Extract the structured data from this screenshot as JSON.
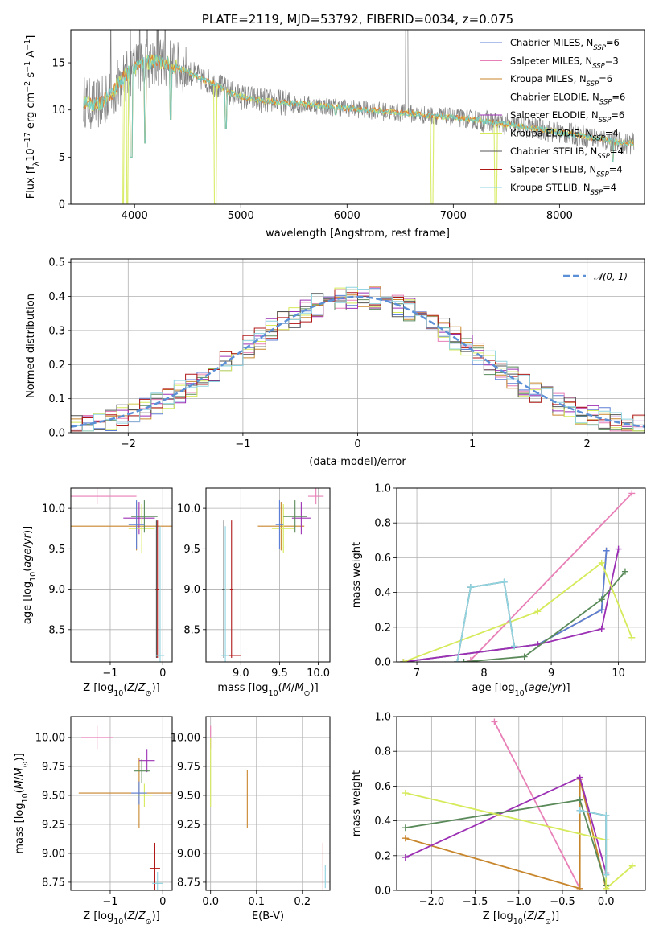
{
  "colors": {
    "chabrier_miles": "#5b7fd6",
    "salpeter_miles": "#e87fb6",
    "kroupa_miles": "#c8862c",
    "chabrier_elodie": "#5a8a5a",
    "salpeter_elodie": "#9c30b4",
    "kroupa_elodie": "#d6ea5a",
    "chabrier_stelib": "#555555",
    "salpeter_stelib": "#b01818",
    "kroupa_stelib": "#8fd4e0",
    "spectrum_data": "#808080",
    "fit_orange": "#e07830",
    "fit_cyan": "#70d0c8",
    "gaussian": "#5b8fd6",
    "grid": "#b0b0b0"
  },
  "chart_data": [
    {
      "id": "spectrum",
      "type": "line",
      "title": "PLATE=2119, MJD=53792, FIBERID=0034, z=0.075",
      "xlabel": "wavelength [Angstrom, rest frame]",
      "ylabel": "Flux [f_λ 10^-17 erg cm^-2 s^-1 A^-1]",
      "xlim": [
        3400,
        8800
      ],
      "ylim": [
        0,
        18.5
      ],
      "xticks": [
        4000,
        5000,
        6000,
        7000,
        8000
      ],
      "yticks": [
        0,
        5,
        10,
        15
      ],
      "grid": false,
      "legend_position": "top-right",
      "legend": [
        {
          "pre": "Chabrier MILES, N",
          "sub": "SSP",
          "post": "=6",
          "color_key": "chabrier_miles"
        },
        {
          "pre": "Salpeter MILES, N",
          "sub": "SSP",
          "post": "=3",
          "color_key": "salpeter_miles"
        },
        {
          "pre": "Kroupa MILES, N",
          "sub": "SSP",
          "post": "=6",
          "color_key": "kroupa_miles"
        },
        {
          "pre": "Chabrier ELODIE, N",
          "sub": "SSP",
          "post": "=6",
          "color_key": "chabrier_elodie"
        },
        {
          "pre": "Salpeter ELODIE, N",
          "sub": "SSP",
          "post": "=6",
          "color_key": "salpeter_elodie"
        },
        {
          "pre": "Kroupa ELODIE, N",
          "sub": "SSP",
          "post": "=4",
          "color_key": "kroupa_elodie"
        },
        {
          "pre": "Chabrier STELIB, N",
          "sub": "SSP",
          "post": "=4",
          "color_key": "chabrier_stelib"
        },
        {
          "pre": "Salpeter STELIB, N",
          "sub": "SSP",
          "post": "=4",
          "color_key": "salpeter_stelib"
        },
        {
          "pre": "Kroupa STELIB, N",
          "sub": "SSP",
          "post": "=4",
          "color_key": "kroupa_stelib"
        }
      ],
      "continuum": [
        [
          3520,
          11
        ],
        [
          3600,
          10.5
        ],
        [
          3700,
          10.8
        ],
        [
          3800,
          12
        ],
        [
          3900,
          13.5
        ],
        [
          4000,
          14.5
        ],
        [
          4100,
          15
        ],
        [
          4200,
          15.2
        ],
        [
          4300,
          15
        ],
        [
          4400,
          14.5
        ],
        [
          4500,
          14
        ],
        [
          4600,
          13.5
        ],
        [
          4700,
          13
        ],
        [
          4800,
          12.5
        ],
        [
          4900,
          11.8
        ],
        [
          5000,
          11.4
        ],
        [
          5200,
          11
        ],
        [
          5400,
          10.8
        ],
        [
          5600,
          10.6
        ],
        [
          5800,
          10.4
        ],
        [
          6000,
          10.2
        ],
        [
          6200,
          10
        ],
        [
          6400,
          9.8
        ],
        [
          6600,
          9.6
        ],
        [
          6800,
          9.4
        ],
        [
          7000,
          9.2
        ],
        [
          7200,
          9
        ],
        [
          7400,
          8.6
        ],
        [
          7600,
          8.3
        ],
        [
          7800,
          8
        ],
        [
          8000,
          7.6
        ],
        [
          8200,
          7.3
        ],
        [
          8400,
          6.9
        ],
        [
          8600,
          6.5
        ],
        [
          8700,
          6.4
        ]
      ],
      "dips": [
        [
          3934,
          0.1
        ],
        [
          3969,
          5
        ],
        [
          4102,
          6.5
        ],
        [
          4340,
          9
        ],
        [
          4861,
          8
        ],
        [
          5890,
          9.5
        ],
        [
          6563,
          10
        ],
        [
          6800,
          0.1
        ],
        [
          7400,
          0.1
        ],
        [
          8500,
          4.5
        ],
        [
          4760,
          0.1
        ],
        [
          3890,
          0.1
        ]
      ]
    },
    {
      "id": "residuals",
      "type": "line",
      "xlabel": "(data-model)/error",
      "ylabel": "Normed distribution",
      "xlim": [
        -2.5,
        2.5
      ],
      "ylim": [
        0,
        0.51
      ],
      "xticks": [
        -2,
        -1,
        0,
        1,
        2
      ],
      "yticks": [
        0.0,
        0.1,
        0.2,
        0.3,
        0.4,
        0.5
      ],
      "grid": true,
      "legend_position": "top-right",
      "legend": [
        {
          "label": "𝒩(0, 1)",
          "color_key": "gaussian",
          "dashed": true
        }
      ],
      "gaussian": {
        "mu": 0,
        "sigma": 1
      }
    },
    {
      "id": "age_vs_Z",
      "type": "scatter",
      "xlabel": "Z [log10(Z/Z⊙)]",
      "ylabel": "age  [log10(age/yr)]",
      "xlim": [
        -1.75,
        0.18
      ],
      "ylim": [
        8.1,
        10.25
      ],
      "xticks": [
        -1,
        0
      ],
      "yticks": [
        8.5,
        9.0,
        9.5,
        10.0
      ],
      "grid": true,
      "points": [
        {
          "x": -1.25,
          "y": 10.15,
          "xe": 0.75,
          "ye": 0.1,
          "color_key": "salpeter_miles"
        },
        {
          "x": -0.5,
          "y": 9.78,
          "xe": 1.65,
          "ye": 0.3,
          "color_key": "kroupa_miles"
        },
        {
          "x": -0.45,
          "y": 9.88,
          "xe": 0.3,
          "ye": 0.2,
          "color_key": "salpeter_elodie"
        },
        {
          "x": -0.4,
          "y": 9.75,
          "xe": 0.25,
          "ye": 0.3,
          "color_key": "kroupa_elodie"
        },
        {
          "x": -0.35,
          "y": 9.9,
          "xe": 0.25,
          "ye": 0.2,
          "color_key": "chabrier_elodie"
        },
        {
          "x": -0.5,
          "y": 9.8,
          "xe": 0.15,
          "ye": 0.3,
          "color_key": "chabrier_miles"
        },
        {
          "x": -0.12,
          "y": 9.0,
          "xe": 0.02,
          "ye": 0.85,
          "color_key": "chabrier_stelib"
        },
        {
          "x": -0.1,
          "y": 9.0,
          "xe": 0.02,
          "ye": 0.85,
          "color_key": "salpeter_stelib"
        },
        {
          "x": -0.05,
          "y": 8.18,
          "xe": 0.08,
          "ye": 1.6,
          "color_key": "kroupa_stelib"
        }
      ]
    },
    {
      "id": "age_vs_mass",
      "type": "scatter",
      "xlabel": "mass [log10(M/M⊙)]",
      "ylabel": "",
      "xlim": [
        8.55,
        10.15
      ],
      "ylim": [
        8.1,
        10.25
      ],
      "xticks": [
        9.0,
        9.5,
        10.0
      ],
      "yticks": [
        8.5,
        9.0,
        9.5,
        10.0
      ],
      "grid": true,
      "points": [
        {
          "x": 9.97,
          "y": 10.15,
          "xe": 0.1,
          "ye": 0.1,
          "color_key": "salpeter_miles"
        },
        {
          "x": 9.52,
          "y": 9.78,
          "xe": 0.3,
          "ye": 0.3,
          "color_key": "kroupa_miles"
        },
        {
          "x": 9.78,
          "y": 9.88,
          "xe": 0.12,
          "ye": 0.2,
          "color_key": "salpeter_elodie"
        },
        {
          "x": 9.55,
          "y": 9.75,
          "xe": 0.15,
          "ye": 0.3,
          "color_key": "kroupa_elodie"
        },
        {
          "x": 9.7,
          "y": 9.9,
          "xe": 0.15,
          "ye": 0.2,
          "color_key": "chabrier_elodie"
        },
        {
          "x": 9.5,
          "y": 9.8,
          "xe": 0.05,
          "ye": 0.3,
          "color_key": "chabrier_miles"
        },
        {
          "x": 8.78,
          "y": 9.0,
          "xe": 0.02,
          "ye": 0.85,
          "color_key": "chabrier_stelib"
        },
        {
          "x": 8.88,
          "y": 9.0,
          "xe": 0.02,
          "ye": 0.85,
          "color_key": "salpeter_stelib"
        },
        {
          "x": 8.88,
          "y": 8.18,
          "xe": 0.12,
          "ye": 0.0,
          "color_key": "salpeter_stelib"
        },
        {
          "x": 8.8,
          "y": 8.18,
          "xe": 0.05,
          "ye": 1.6,
          "color_key": "kroupa_stelib"
        }
      ]
    },
    {
      "id": "weight_vs_age",
      "type": "line",
      "xlabel": "age  [log10(age/yr)]",
      "ylabel": "mass weight",
      "xlim": [
        6.7,
        10.4
      ],
      "ylim": [
        0,
        1.0
      ],
      "xticks": [
        7,
        8,
        9,
        10
      ],
      "yticks": [
        0.0,
        0.2,
        0.4,
        0.6,
        0.8,
        1.0
      ],
      "grid": true,
      "series": [
        {
          "color_key": "salpeter_miles",
          "points": [
            [
              7.8,
              0.01
            ],
            [
              10.2,
              0.97
            ]
          ]
        },
        {
          "color_key": "kroupa_miles",
          "points": [
            [
              6.8,
              0.0
            ],
            [
              8.8,
              0.1
            ],
            [
              9.75,
              0.3
            ],
            [
              9.82,
              0.64
            ]
          ]
        },
        {
          "color_key": "chabrier_miles",
          "points": [
            [
              6.8,
              0.0
            ],
            [
              8.8,
              0.1
            ],
            [
              9.75,
              0.3
            ],
            [
              9.82,
              0.64
            ]
          ]
        },
        {
          "color_key": "salpeter_elodie",
          "points": [
            [
              6.8,
              0.0
            ],
            [
              8.8,
              0.1
            ],
            [
              9.75,
              0.19
            ],
            [
              10.0,
              0.65
            ]
          ]
        },
        {
          "color_key": "chabrier_elodie",
          "points": [
            [
              7.7,
              0.0
            ],
            [
              8.6,
              0.03
            ],
            [
              9.75,
              0.36
            ],
            [
              10.1,
              0.52
            ]
          ]
        },
        {
          "color_key": "kroupa_elodie",
          "points": [
            [
              6.8,
              0.0
            ],
            [
              8.8,
              0.29
            ],
            [
              9.75,
              0.57
            ],
            [
              10.2,
              0.14
            ]
          ]
        },
        {
          "color_key": "chabrier_stelib",
          "points": [
            [
              7.6,
              0.0
            ],
            [
              7.8,
              0.43
            ],
            [
              8.3,
              0.46
            ],
            [
              8.45,
              0.09
            ]
          ]
        },
        {
          "color_key": "kroupa_stelib",
          "points": [
            [
              7.6,
              0.0
            ],
            [
              7.8,
              0.43
            ],
            [
              8.3,
              0.46
            ],
            [
              8.45,
              0.09
            ]
          ]
        }
      ]
    },
    {
      "id": "mass_vs_Z",
      "type": "scatter",
      "xlabel": "Z [log10(Z/Z⊙)]",
      "ylabel": "mass [log10(M/M⊙)]",
      "xlim": [
        -1.75,
        0.18
      ],
      "ylim": [
        8.68,
        10.18
      ],
      "xticks": [
        -1,
        0
      ],
      "yticks": [
        8.75,
        9.0,
        9.25,
        9.5,
        9.75,
        10.0
      ],
      "grid": true,
      "points": [
        {
          "x": -1.25,
          "y": 10.0,
          "xe": 0.3,
          "ye": 0.1,
          "color_key": "salpeter_miles"
        },
        {
          "x": -0.45,
          "y": 9.52,
          "xe": 1.15,
          "ye": 0.3,
          "color_key": "kroupa_miles"
        },
        {
          "x": -0.3,
          "y": 9.8,
          "xe": 0.15,
          "ye": 0.1,
          "color_key": "salpeter_elodie"
        },
        {
          "x": -0.35,
          "y": 9.5,
          "xe": 0.15,
          "ye": 0.1,
          "color_key": "kroupa_elodie"
        },
        {
          "x": -0.4,
          "y": 9.71,
          "xe": 0.15,
          "ye": 0.1,
          "color_key": "chabrier_elodie"
        },
        {
          "x": -0.45,
          "y": 9.52,
          "xe": 0.15,
          "ye": 0.1,
          "color_key": "chabrier_miles"
        },
        {
          "x": -0.15,
          "y": 8.87,
          "xe": 0.1,
          "ye": 0.22,
          "color_key": "salpeter_stelib"
        },
        {
          "x": -0.1,
          "y": 8.74,
          "xe": 0.1,
          "ye": 0.1,
          "color_key": "kroupa_stelib"
        }
      ]
    },
    {
      "id": "mass_vs_ebv",
      "type": "scatter",
      "xlabel": "E(B-V)",
      "ylabel": "",
      "xlim": [
        -0.01,
        0.26
      ],
      "ylim": [
        8.68,
        10.18
      ],
      "xticks": [
        0.0,
        0.1,
        0.2
      ],
      "yticks": [
        8.75,
        9.0,
        9.25,
        9.5,
        9.75,
        10.0
      ],
      "grid": true,
      "points": [
        {
          "x": 0.0,
          "y": 10.0,
          "xe": 0.0,
          "ye": 0.1,
          "color_key": "salpeter_miles"
        },
        {
          "x": 0.08,
          "y": 9.47,
          "xe": 0.0,
          "ye": 0.25,
          "color_key": "kroupa_miles"
        },
        {
          "x": 0.0,
          "y": 9.7,
          "xe": 0.0,
          "ye": 0.3,
          "color_key": "kroupa_elodie"
        },
        {
          "x": 0.245,
          "y": 8.87,
          "xe": 0.0,
          "ye": 0.22,
          "color_key": "salpeter_stelib"
        },
        {
          "x": 0.25,
          "y": 8.8,
          "xe": 0.0,
          "ye": 0.1,
          "color_key": "kroupa_stelib"
        }
      ]
    },
    {
      "id": "weight_vs_Z",
      "type": "line",
      "xlabel": "Z [log10(Z/Z⊙)]",
      "ylabel": "mass weight",
      "xlim": [
        -2.4,
        0.45
      ],
      "ylim": [
        0,
        1.0
      ],
      "xticks": [
        -2.0,
        -1.5,
        -1.0,
        -0.5,
        0.0
      ],
      "yticks": [
        0.0,
        0.2,
        0.4,
        0.6,
        0.8,
        1.0
      ],
      "grid": true,
      "series": [
        {
          "color_key": "salpeter_miles",
          "points": [
            [
              -1.28,
              0.97
            ],
            [
              -0.3,
              0.01
            ]
          ]
        },
        {
          "color_key": "kroupa_miles",
          "points": [
            [
              -2.3,
              0.3
            ],
            [
              -0.3,
              0.01
            ],
            [
              -0.3,
              0.64
            ],
            [
              0.0,
              0.01
            ]
          ]
        },
        {
          "color_key": "salpeter_elodie",
          "points": [
            [
              -2.3,
              0.19
            ],
            [
              -0.3,
              0.65
            ],
            [
              0.0,
              0.1
            ]
          ]
        },
        {
          "color_key": "chabrier_elodie",
          "points": [
            [
              -2.3,
              0.36
            ],
            [
              -0.3,
              0.52
            ],
            [
              0.0,
              0.03
            ]
          ]
        },
        {
          "color_key": "kroupa_elodie",
          "points": [
            [
              -2.3,
              0.56
            ],
            [
              0.0,
              0.29
            ],
            [
              0.0,
              0.01
            ],
            [
              0.3,
              0.14
            ]
          ]
        },
        {
          "color_key": "chabrier_stelib",
          "points": [
            [
              -0.3,
              0.46
            ],
            [
              0.0,
              0.43
            ],
            [
              0.0,
              0.09
            ]
          ]
        },
        {
          "color_key": "kroupa_stelib",
          "points": [
            [
              -0.3,
              0.46
            ],
            [
              0.0,
              0.43
            ],
            [
              0.0,
              0.09
            ]
          ]
        }
      ]
    }
  ]
}
